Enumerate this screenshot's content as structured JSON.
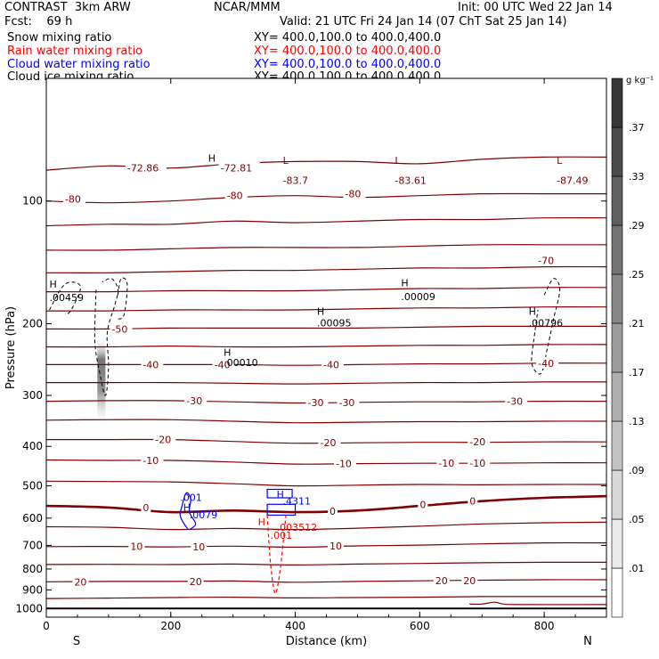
{
  "header": {
    "title": "CONTRAST  3km ARW",
    "fcst": "Fcst:    69 h",
    "center": "NCAR/MMM",
    "init": "Init: 00 UTC Wed 22 Jan 14",
    "valid": "Valid: 21 UTC Fri 24 Jan 14 (07 ChT Sat 25 Jan 14)"
  },
  "fields": [
    {
      "name": "Snow mixing ratio",
      "xy": "XY= 400.0,100.0 to 400.0,400.0",
      "color": "#000000"
    },
    {
      "name": "Rain water mixing ratio",
      "xy": "XY= 400.0,100.0 to 400.0,400.0",
      "color": "#ff0000"
    },
    {
      "name": "Cloud water mixing ratio",
      "xy": "XY= 400.0,100.0 to 400.0,400.0",
      "color": "#0000ff"
    },
    {
      "name": "Cloud ice mixing ratio",
      "xy": "XY= 400.0,100.0 to 400.0,400.0",
      "color": "#000000"
    }
  ],
  "chart_data": {
    "type": "contour",
    "xlabel": "Distance (km)",
    "ylabel": "Pressure (hPa)",
    "x_ticks": [
      0,
      200,
      400,
      600,
      800
    ],
    "y_ticks": [
      100,
      200,
      300,
      400,
      500,
      600,
      700,
      800,
      900,
      1000
    ],
    "xlim": [
      0,
      900
    ],
    "ylim_hpa": [
      1050,
      50
    ],
    "y_scale": "log",
    "left_end": "S",
    "right_end": "N",
    "temperature_contours_c": [
      {
        "p": [
          [
            0,
            84
          ],
          [
            100,
            82
          ],
          [
            200,
            83
          ],
          [
            300,
            81
          ],
          [
            400,
            80
          ],
          [
            500,
            80
          ],
          [
            600,
            81
          ],
          [
            700,
            79
          ],
          [
            800,
            78
          ],
          [
            900,
            78
          ]
        ]
      },
      {
        "p": [
          [
            0,
            100
          ],
          [
            100,
            101
          ],
          [
            200,
            100
          ],
          [
            300,
            98
          ],
          [
            400,
            97
          ],
          [
            500,
            98
          ],
          [
            600,
            97
          ],
          [
            700,
            96
          ],
          [
            800,
            96
          ],
          [
            900,
            96
          ]
        ]
      },
      {
        "p": [
          [
            0,
            115
          ],
          [
            100,
            114
          ],
          [
            200,
            114
          ],
          [
            300,
            112
          ],
          [
            400,
            113
          ],
          [
            500,
            112
          ],
          [
            600,
            111
          ],
          [
            700,
            111
          ],
          [
            800,
            110
          ],
          [
            900,
            110
          ]
        ]
      },
      {
        "p": [
          [
            0,
            132
          ],
          [
            100,
            132
          ],
          [
            200,
            131
          ],
          [
            300,
            130
          ],
          [
            400,
            130
          ],
          [
            500,
            130
          ],
          [
            600,
            129
          ],
          [
            700,
            128
          ],
          [
            800,
            128
          ],
          [
            900,
            128
          ]
        ]
      },
      {
        "p": [
          [
            0,
            150
          ],
          [
            100,
            150
          ],
          [
            200,
            149
          ],
          [
            300,
            148
          ],
          [
            400,
            148
          ],
          [
            500,
            147
          ],
          [
            600,
            146
          ],
          [
            700,
            146
          ],
          [
            800,
            145
          ],
          [
            900,
            145
          ]
        ]
      },
      {
        "p": [
          [
            0,
            167
          ],
          [
            100,
            167
          ],
          [
            200,
            166
          ],
          [
            300,
            166
          ],
          [
            400,
            166
          ],
          [
            500,
            165
          ],
          [
            600,
            164
          ],
          [
            700,
            164
          ],
          [
            800,
            163
          ],
          [
            900,
            163
          ]
        ]
      },
      {
        "p": [
          [
            0,
            186
          ],
          [
            100,
            186
          ],
          [
            200,
            185
          ],
          [
            300,
            185
          ],
          [
            400,
            185
          ],
          [
            500,
            184
          ],
          [
            600,
            183
          ],
          [
            700,
            183
          ],
          [
            800,
            182
          ],
          [
            900,
            182
          ]
        ]
      },
      {
        "p": [
          [
            0,
            206
          ],
          [
            100,
            206
          ],
          [
            200,
            205
          ],
          [
            300,
            205
          ],
          [
            400,
            205
          ],
          [
            500,
            205
          ],
          [
            600,
            204
          ],
          [
            700,
            203
          ],
          [
            800,
            203
          ],
          [
            900,
            203
          ]
        ]
      },
      {
        "p": [
          [
            0,
            228
          ],
          [
            100,
            228
          ],
          [
            200,
            227
          ],
          [
            300,
            228
          ],
          [
            400,
            228
          ],
          [
            500,
            227
          ],
          [
            600,
            226
          ],
          [
            700,
            226
          ],
          [
            800,
            225
          ],
          [
            900,
            225
          ]
        ]
      },
      {
        "p": [
          [
            0,
            252
          ],
          [
            100,
            252
          ],
          [
            200,
            252
          ],
          [
            300,
            252
          ],
          [
            400,
            253
          ],
          [
            500,
            252
          ],
          [
            600,
            251
          ],
          [
            700,
            251
          ],
          [
            800,
            250
          ],
          [
            900,
            250
          ]
        ]
      },
      {
        "p": [
          [
            0,
            279
          ],
          [
            100,
            279
          ],
          [
            200,
            279
          ],
          [
            300,
            280
          ],
          [
            400,
            281
          ],
          [
            500,
            280
          ],
          [
            600,
            279
          ],
          [
            700,
            279
          ],
          [
            800,
            278
          ],
          [
            900,
            278
          ]
        ]
      },
      {
        "p": [
          [
            0,
            310
          ],
          [
            100,
            309
          ],
          [
            200,
            309
          ],
          [
            300,
            311
          ],
          [
            400,
            313
          ],
          [
            500,
            312
          ],
          [
            600,
            311
          ],
          [
            700,
            311
          ],
          [
            800,
            310
          ],
          [
            900,
            310
          ]
        ]
      },
      {
        "p": [
          [
            0,
            345
          ],
          [
            100,
            344
          ],
          [
            200,
            344
          ],
          [
            300,
            347
          ],
          [
            400,
            350
          ],
          [
            500,
            349
          ],
          [
            600,
            348
          ],
          [
            700,
            348
          ],
          [
            800,
            347
          ],
          [
            900,
            347
          ]
        ]
      },
      {
        "p": [
          [
            0,
            385
          ],
          [
            100,
            385
          ],
          [
            200,
            385
          ],
          [
            300,
            389
          ],
          [
            400,
            393
          ],
          [
            500,
            392
          ],
          [
            600,
            391
          ],
          [
            700,
            391
          ],
          [
            800,
            390
          ],
          [
            900,
            390
          ]
        ]
      },
      {
        "p": [
          [
            0,
            432
          ],
          [
            100,
            433
          ],
          [
            200,
            433
          ],
          [
            300,
            437
          ],
          [
            400,
            442
          ],
          [
            500,
            441
          ],
          [
            600,
            440
          ],
          [
            700,
            440
          ],
          [
            800,
            439
          ],
          [
            900,
            439
          ]
        ]
      },
      {
        "p": [
          [
            0,
            487
          ],
          [
            100,
            488
          ],
          [
            200,
            489
          ],
          [
            300,
            494
          ],
          [
            400,
            500
          ],
          [
            500,
            498
          ],
          [
            600,
            496
          ],
          [
            700,
            497
          ],
          [
            800,
            496
          ],
          [
            900,
            496
          ]
        ]
      },
      {
        "p": [
          [
            0,
            560
          ],
          [
            100,
            565
          ],
          [
            200,
            580
          ],
          [
            300,
            575
          ],
          [
            400,
            580
          ],
          [
            500,
            575
          ],
          [
            600,
            560
          ],
          [
            700,
            545
          ],
          [
            800,
            535
          ],
          [
            900,
            530
          ]
        ],
        "zero": true
      },
      {
        "p": [
          [
            0,
            630
          ],
          [
            100,
            632
          ],
          [
            200,
            640
          ],
          [
            300,
            636
          ],
          [
            400,
            640
          ],
          [
            500,
            635
          ],
          [
            600,
            628
          ],
          [
            700,
            620
          ],
          [
            800,
            616
          ],
          [
            900,
            614
          ]
        ]
      },
      {
        "p": [
          [
            0,
            705
          ],
          [
            100,
            704
          ],
          [
            200,
            706
          ],
          [
            300,
            703
          ],
          [
            400,
            707
          ],
          [
            500,
            702
          ],
          [
            600,
            699
          ],
          [
            700,
            694
          ],
          [
            800,
            690
          ],
          [
            900,
            690
          ]
        ]
      },
      {
        "p": [
          [
            0,
            780
          ],
          [
            100,
            779
          ],
          [
            200,
            780
          ],
          [
            300,
            778
          ],
          [
            400,
            782
          ],
          [
            500,
            778
          ],
          [
            600,
            775
          ],
          [
            700,
            772
          ],
          [
            800,
            770
          ],
          [
            900,
            770
          ]
        ]
      },
      {
        "p": [
          [
            0,
            860
          ],
          [
            100,
            858
          ],
          [
            200,
            858
          ],
          [
            300,
            856
          ],
          [
            400,
            862
          ],
          [
            500,
            858
          ],
          [
            600,
            855
          ],
          [
            700,
            852
          ],
          [
            800,
            850
          ],
          [
            900,
            850
          ]
        ]
      },
      {
        "p": [
          [
            0,
            945
          ],
          [
            100,
            943
          ],
          [
            200,
            940
          ],
          [
            300,
            938
          ],
          [
            400,
            942
          ],
          [
            500,
            940
          ],
          [
            600,
            938
          ],
          [
            700,
            935
          ],
          [
            800,
            935
          ],
          [
            900,
            935
          ]
        ]
      }
    ],
    "temperature_labels": [
      {
        "t": "-72.86",
        "x": 130,
        "p": 83
      },
      {
        "t": "-72.81",
        "x": 280,
        "p": 83
      },
      {
        "t": "-83.7",
        "x": 380,
        "p": 89
      },
      {
        "t": "-83.61",
        "x": 560,
        "p": 89
      },
      {
        "t": "-87.49",
        "x": 820,
        "p": 89
      },
      {
        "t": "-80",
        "x": 30,
        "p": 99
      },
      {
        "t": "-80",
        "x": 290,
        "p": 97
      },
      {
        "t": "-80",
        "x": 480,
        "p": 96
      },
      {
        "t": "-70",
        "x": 790,
        "p": 140
      },
      {
        "t": "-50",
        "x": 105,
        "p": 206
      },
      {
        "t": "-40",
        "x": 155,
        "p": 252
      },
      {
        "t": "-40",
        "x": 270,
        "p": 252
      },
      {
        "t": "-40",
        "x": 445,
        "p": 252
      },
      {
        "t": "-40",
        "x": 790,
        "p": 250
      },
      {
        "t": "-30",
        "x": 225,
        "p": 309
      },
      {
        "t": "-30",
        "x": 420,
        "p": 312
      },
      {
        "t": "-30",
        "x": 470,
        "p": 312
      },
      {
        "t": "-30",
        "x": 740,
        "p": 310
      },
      {
        "t": "-20",
        "x": 175,
        "p": 385
      },
      {
        "t": "-20",
        "x": 440,
        "p": 392
      },
      {
        "t": "-20",
        "x": 680,
        "p": 390
      },
      {
        "t": "-10",
        "x": 155,
        "p": 433
      },
      {
        "t": "-10",
        "x": 465,
        "p": 441
      },
      {
        "t": "-10",
        "x": 630,
        "p": 440
      },
      {
        "t": "-10",
        "x": 680,
        "p": 440
      },
      {
        "t": "0",
        "x": 155,
        "p": 565
      },
      {
        "t": "0",
        "x": 455,
        "p": 577
      },
      {
        "t": "0",
        "x": 600,
        "p": 556
      },
      {
        "t": "0",
        "x": 680,
        "p": 545
      },
      {
        "t": "10",
        "x": 455,
        "p": 702
      },
      {
        "t": "10",
        "x": 135,
        "p": 704
      },
      {
        "t": "10",
        "x": 235,
        "p": 705
      },
      {
        "t": "20",
        "x": 45,
        "p": 860
      },
      {
        "t": "20",
        "x": 230,
        "p": 858
      },
      {
        "t": "20",
        "x": 625,
        "p": 855
      },
      {
        "t": "20",
        "x": 670,
        "p": 854
      }
    ],
    "extrema_labels": [
      {
        "t": "H",
        "x": 260,
        "p": 80,
        "c": "#000000"
      },
      {
        "t": "L",
        "x": 380,
        "p": 81,
        "c": "#800000"
      },
      {
        "t": "L",
        "x": 560,
        "p": 81,
        "c": "#800000"
      },
      {
        "t": "L",
        "x": 820,
        "p": 81,
        "c": "#800000"
      },
      {
        "t": "H",
        "x": 5,
        "p": 163,
        "c": "#000000"
      },
      {
        "t": ".00459",
        "x": 5,
        "p": 176,
        "c": "#000000"
      },
      {
        "t": "H",
        "x": 570,
        "p": 162,
        "c": "#000000"
      },
      {
        "t": ".00009",
        "x": 570,
        "p": 175,
        "c": "#000000"
      },
      {
        "t": "H",
        "x": 435,
        "p": 190,
        "c": "#000000"
      },
      {
        "t": ".00095",
        "x": 435,
        "p": 203,
        "c": "#000000"
      },
      {
        "t": "H",
        "x": 775,
        "p": 190,
        "c": "#000000"
      },
      {
        "t": ".00796",
        "x": 775,
        "p": 203,
        "c": "#000000"
      },
      {
        "t": "H",
        "x": 285,
        "p": 240,
        "c": "#000000"
      },
      {
        "t": ".00010",
        "x": 285,
        "p": 254,
        "c": "#000000"
      },
      {
        "t": ".001",
        "x": 215,
        "p": 545,
        "c": "#0000ff"
      },
      {
        "t": "H",
        "x": 220,
        "p": 575,
        "c": "#0000ff"
      },
      {
        "t": ".0079",
        "x": 230,
        "p": 600,
        "c": "#0000ff"
      },
      {
        "t": "H",
        "x": 370,
        "p": 535,
        "c": "#0000ff"
      },
      {
        "t": ".4311",
        "x": 380,
        "p": 555,
        "c": "#0000ff"
      },
      {
        "t": "H",
        "x": 340,
        "p": 625,
        "c": "#ff0000"
      },
      {
        "t": ".003512",
        "x": 370,
        "p": 645,
        "c": "#ff0000"
      },
      {
        "t": ".001",
        "x": 360,
        "p": 675,
        "c": "#ff0000"
      }
    ],
    "color_scale": {
      "unit": "g kg⁻¹",
      "labels": [
        ".01",
        ".05",
        ".09",
        ".13",
        ".17",
        ".21",
        ".25",
        ".29",
        ".33",
        ".37"
      ]
    }
  }
}
